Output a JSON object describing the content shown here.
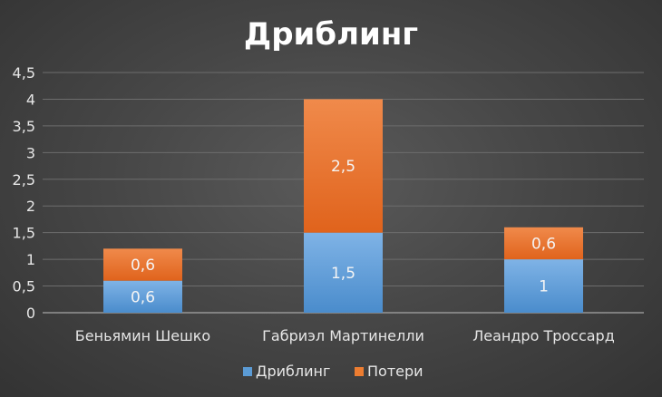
{
  "chart_data": {
    "type": "bar",
    "stacked": true,
    "title": "Дриблинг",
    "categories": [
      "Беньямин Шешко",
      "Габриэл Мартинелли",
      "Леандро Троссард"
    ],
    "series": [
      {
        "name": "Дриблинг",
        "values": [
          0.6,
          1.5,
          1
        ],
        "labels": [
          "0,6",
          "1,5",
          "1"
        ],
        "color": "#5b9bd5"
      },
      {
        "name": "Потери",
        "values": [
          0.6,
          2.5,
          0.6
        ],
        "labels": [
          "0,6",
          "2,5",
          "0,6"
        ],
        "color": "#ed7d31"
      }
    ],
    "ylim": [
      0,
      4.5
    ],
    "yticks": [
      "0",
      "0,5",
      "1",
      "1,5",
      "2",
      "2,5",
      "3",
      "3,5",
      "4",
      "4,5"
    ],
    "grid": true,
    "legend_position": "bottom"
  }
}
